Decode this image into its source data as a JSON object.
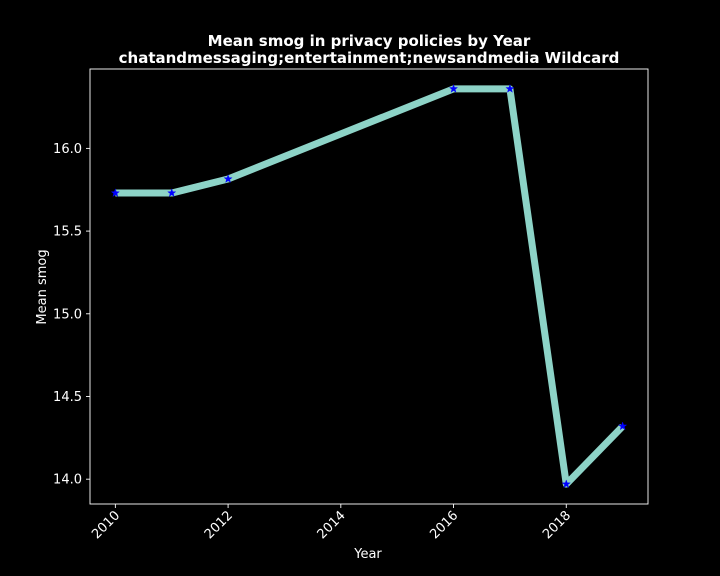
{
  "colors": {
    "background": "#000000",
    "axes": "#ffffff",
    "line": "#8dd3c7",
    "marker": "#0000ff"
  },
  "chart_data": {
    "type": "line",
    "title": "Mean smog in privacy policies by Year",
    "subtitle": "chatandmessaging;entertainment;newsandmedia Wildcard",
    "xlabel": "Year",
    "ylabel": "Mean smog",
    "x": [
      2010,
      2011,
      2012,
      2016,
      2017,
      2018,
      2019
    ],
    "y": [
      15.73,
      15.73,
      15.815,
      16.36,
      16.36,
      13.97,
      14.32
    ],
    "xlim": [
      2009.55,
      2019.45
    ],
    "ylim": [
      13.85,
      16.48
    ],
    "xticks": [
      2010,
      2012,
      2014,
      2016,
      2018
    ],
    "xtick_labels": [
      "2010",
      "2012",
      "2014",
      "2016",
      "2018"
    ],
    "xtick_rotation": 45,
    "yticks": [
      14.0,
      14.5,
      15.0,
      15.5,
      16.0
    ],
    "ytick_labels": [
      "14.0",
      "14.5",
      "15.0",
      "15.5",
      "16.0"
    ],
    "marker": "star",
    "grid": false,
    "legend": false
  }
}
